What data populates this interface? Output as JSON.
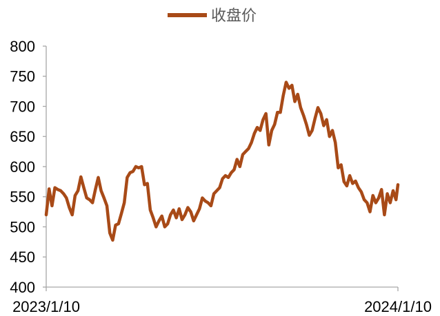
{
  "chart_data": {
    "type": "line",
    "xlim": [
      "2023/1/10",
      "2024/1/10"
    ],
    "ylim": [
      400,
      800
    ],
    "yticks": [
      400,
      450,
      500,
      550,
      600,
      650,
      700,
      750,
      800
    ],
    "xtick_labels": [
      "2023/1/10",
      "2024/1/10"
    ],
    "grid": false,
    "legend": "top-center",
    "series": [
      {
        "name": "收盘价",
        "color": "#A84A17",
        "x": [
          "2023/1/10",
          "2023/1/13",
          "2023/1/16",
          "2023/1/19",
          "2023/1/22",
          "2023/1/25",
          "2023/1/28",
          "2023/1/31",
          "2023/2/3",
          "2023/2/6",
          "2023/2/9",
          "2023/2/12",
          "2023/2/15",
          "2023/2/18",
          "2023/2/21",
          "2023/2/24",
          "2023/2/27",
          "2023/3/2",
          "2023/3/5",
          "2023/3/8",
          "2023/3/11",
          "2023/3/14",
          "2023/3/17",
          "2023/3/20",
          "2023/3/23",
          "2023/3/26",
          "2023/3/29",
          "2023/4/1",
          "2023/4/4",
          "2023/4/7",
          "2023/4/10",
          "2023/4/13",
          "2023/4/16",
          "2023/4/19",
          "2023/4/22",
          "2023/4/25",
          "2023/4/28",
          "2023/5/1",
          "2023/5/4",
          "2023/5/7",
          "2023/5/10",
          "2023/5/13",
          "2023/5/16",
          "2023/5/19",
          "2023/5/22",
          "2023/5/25",
          "2023/5/28",
          "2023/5/31",
          "2023/6/3",
          "2023/6/6",
          "2023/6/9",
          "2023/6/12",
          "2023/6/15",
          "2023/6/18",
          "2023/6/21",
          "2023/6/24",
          "2023/6/27",
          "2023/6/30",
          "2023/7/3",
          "2023/7/6",
          "2023/7/9",
          "2023/7/12",
          "2023/7/15",
          "2023/7/18",
          "2023/7/21",
          "2023/7/24",
          "2023/7/27",
          "2023/7/30",
          "2023/8/2",
          "2023/8/5",
          "2023/8/8",
          "2023/8/11",
          "2023/8/14",
          "2023/8/17",
          "2023/8/20",
          "2023/8/23",
          "2023/8/26",
          "2023/8/29",
          "2023/9/1",
          "2023/9/4",
          "2023/9/7",
          "2023/9/10",
          "2023/9/13",
          "2023/9/16",
          "2023/9/19",
          "2023/9/22",
          "2023/9/25",
          "2023/9/28",
          "2023/10/1",
          "2023/10/4",
          "2023/10/7",
          "2023/10/10",
          "2023/10/13",
          "2023/10/16",
          "2023/10/19",
          "2023/10/22",
          "2023/10/25",
          "2023/10/28",
          "2023/10/31",
          "2023/11/3",
          "2023/11/6",
          "2023/11/9",
          "2023/11/12",
          "2023/11/15",
          "2023/11/18",
          "2023/11/21",
          "2023/11/24",
          "2023/11/27",
          "2023/11/30",
          "2023/12/3",
          "2023/12/6",
          "2023/12/9",
          "2023/12/12",
          "2023/12/15",
          "2023/12/18",
          "2023/12/21",
          "2023/12/24",
          "2023/12/27",
          "2023/12/30",
          "2024/1/2",
          "2024/1/5",
          "2024/1/8",
          "2024/1/10"
        ],
        "y": [
          520,
          563,
          535,
          565,
          562,
          560,
          555,
          548,
          532,
          520,
          552,
          560,
          583,
          565,
          548,
          545,
          540,
          562,
          582,
          560,
          548,
          535,
          490,
          478,
          503,
          505,
          522,
          540,
          582,
          590,
          592,
          600,
          598,
          600,
          570,
          572,
          528,
          515,
          500,
          510,
          518,
          500,
          505,
          520,
          528,
          515,
          530,
          512,
          520,
          532,
          525,
          510,
          520,
          530,
          548,
          543,
          540,
          535,
          555,
          560,
          565,
          580,
          585,
          582,
          590,
          595,
          612,
          600,
          620,
          625,
          630,
          640,
          655,
          665,
          660,
          678,
          688,
          636,
          660,
          670,
          690,
          690,
          718,
          740,
          730,
          735,
          708,
          720,
          698,
          685,
          670,
          652,
          660,
          680,
          698,
          688,
          668,
          678,
          650,
          660,
          640,
          598,
          603,
          575,
          568,
          585,
          572,
          576,
          565,
          558,
          545,
          540,
          525,
          552,
          540,
          548,
          562,
          520,
          555,
          540,
          560,
          545,
          570
        ]
      }
    ]
  }
}
